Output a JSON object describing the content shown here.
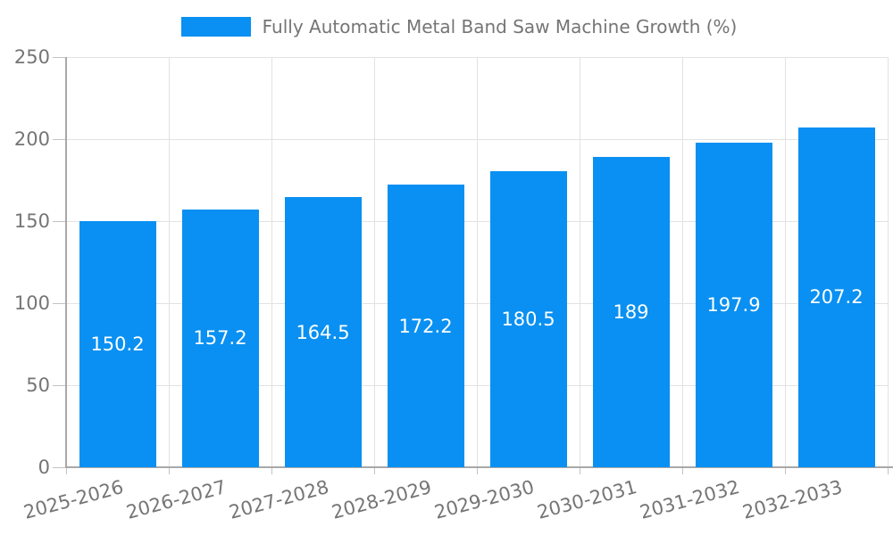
{
  "chart_data": {
    "type": "bar",
    "title": "Fully Automatic Metal Band Saw Machine Growth (%)",
    "legend": {
      "position": "top",
      "label": "Fully Automatic Metal Band Saw Machine Growth (%)"
    },
    "categories": [
      "2025-2026",
      "2026-2027",
      "2027-2028",
      "2028-2029",
      "2029-2030",
      "2030-2031",
      "2031-2032",
      "2032-2033"
    ],
    "values": [
      150.2,
      157.2,
      164.5,
      172.2,
      180.5,
      189,
      197.9,
      207.2
    ],
    "value_labels": [
      "150.2",
      "157.2",
      "164.5",
      "172.2",
      "180.5",
      "189",
      "197.9",
      "207.2"
    ],
    "xlabel": "",
    "ylabel": "",
    "ylim": [
      0,
      250
    ],
    "yticks": [
      0,
      50,
      100,
      150,
      200,
      250
    ],
    "grid": true,
    "x_tick_rotation_deg": -15
  },
  "colors": {
    "bar": "#0990f2",
    "grid": "#e2e2e2",
    "axis": "#a8a8a8",
    "tick": "#c2c2c2",
    "text": "#757575",
    "value_label": "#ffffff",
    "background": "#ffffff"
  }
}
